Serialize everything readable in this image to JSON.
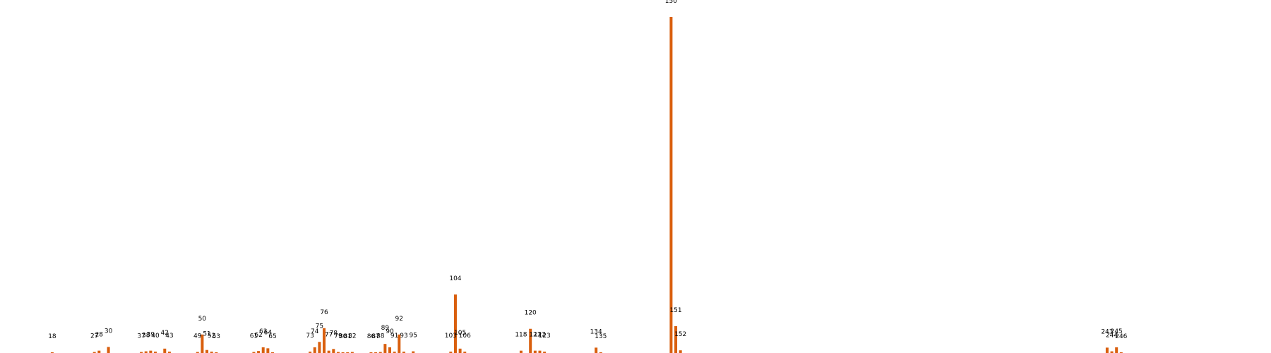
{
  "chart_data": {
    "type": "bar",
    "title": "",
    "xlabel": "",
    "ylabel": "",
    "color": "#d95f0e",
    "grid": false,
    "xlim": [
      0,
      265
    ],
    "ylim": [
      0,
      100
    ],
    "x": [
      18,
      27,
      28,
      30,
      37,
      38,
      39,
      40,
      42,
      43,
      49,
      50,
      51,
      52,
      53,
      61,
      62,
      63,
      64,
      65,
      73,
      74,
      75,
      76,
      77,
      78,
      79,
      80,
      81,
      82,
      86,
      87,
      88,
      89,
      90,
      91,
      92,
      93,
      95,
      103,
      104,
      105,
      106,
      118,
      120,
      121,
      122,
      123,
      134,
      135,
      150,
      151,
      152,
      243,
      244,
      245,
      246
    ],
    "labels": [
      "18",
      "27",
      "28",
      "30",
      "37",
      "38",
      "39",
      "40",
      "42",
      "43",
      "49",
      "50",
      "51",
      "52",
      "53",
      "61",
      "62",
      "63",
      "64",
      "65",
      "73",
      "74",
      "75",
      "76",
      "77",
      "78",
      "79",
      "80",
      "81",
      "82",
      "86",
      "87",
      "88",
      "89",
      "90",
      "91",
      "92",
      "93",
      "95",
      "103",
      "104",
      "105",
      "106",
      "118",
      "120",
      "121",
      "122",
      "123",
      "134",
      "135",
      "150",
      "151",
      "152",
      "243",
      "244",
      "245",
      "246"
    ],
    "values": [
      0.1,
      0.3,
      0.7,
      1.8,
      0.3,
      0.5,
      0.7,
      0.4,
      1.3,
      0.4,
      0.3,
      5.5,
      0.9,
      0.4,
      0.1,
      0.3,
      0.6,
      1.7,
      1.4,
      0.1,
      0.4,
      1.7,
      3.3,
      7.4,
      0.7,
      1.2,
      0.3,
      0.1,
      0.2,
      0.3,
      0.2,
      0.2,
      0.3,
      2.7,
      1.7,
      0.4,
      5.5,
      0.4,
      0.5,
      0.4,
      17.4,
      1.3,
      0.4,
      0.7,
      7.2,
      0.7,
      0.7,
      0.4,
      1.6,
      0.2,
      100,
      8.0,
      0.8,
      1.6,
      0.5,
      1.7,
      0.1
    ]
  }
}
